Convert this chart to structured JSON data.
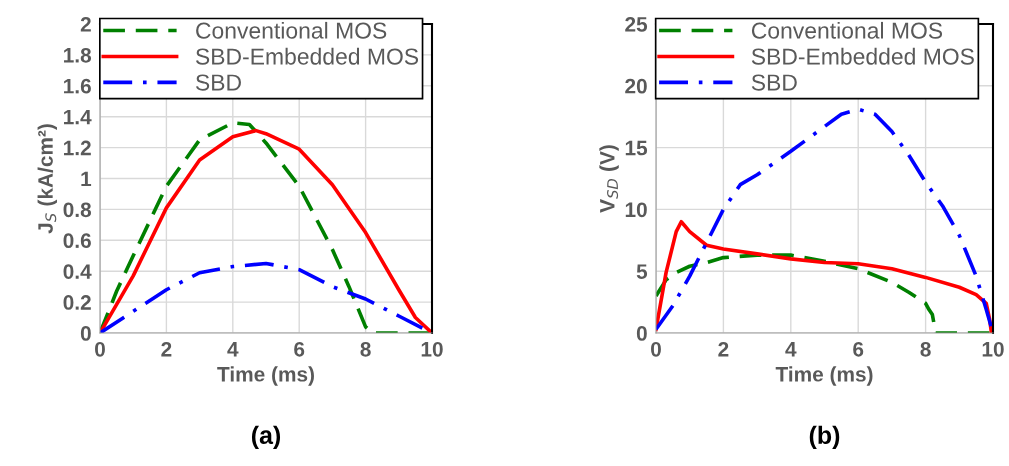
{
  "chart_data": [
    {
      "type": "line",
      "title": "(a)",
      "xlabel": "Time (ms)",
      "ylabel": "J$_{S}$ (kA/cm²)",
      "xlim": [
        0,
        10
      ],
      "xticks": [
        0,
        2,
        4,
        6,
        8,
        10
      ],
      "ylim": [
        0,
        2
      ],
      "yticks": [
        0,
        {
          "value": 0.2,
          "label": "0.2"
        },
        {
          "value": 0.4,
          "label": "0.4"
        },
        {
          "value": 0.6,
          "label": "0.6"
        },
        {
          "value": 0.8,
          "label": "0.8"
        },
        1,
        {
          "value": 1.2,
          "label": "1.2"
        },
        {
          "value": 1.4,
          "label": "1.4"
        },
        {
          "value": 1.6,
          "label": "1.6"
        },
        {
          "value": 1.8,
          "label": "1.8"
        },
        2
      ],
      "grid": true,
      "legend": "top left",
      "marker": "none",
      "series": [
        {
          "name": "Conventional MOS",
          "color": "#008000",
          "line_style": "dashed",
          "x": [
            0,
            0.5,
            1,
            2,
            3,
            4,
            4.5,
            5,
            6,
            7,
            7.5,
            8,
            8.2,
            9.3,
            10
          ],
          "values": [
            0,
            0.27,
            0.5,
            0.95,
            1.25,
            1.36,
            1.35,
            1.23,
            0.95,
            0.54,
            0.3,
            0.04,
            0,
            0,
            0
          ]
        },
        {
          "name": "SBD-Embedded MOS",
          "color": "#ff0000",
          "line_style": "solid",
          "x": [
            0,
            1,
            2,
            3,
            4,
            4.7,
            5,
            6,
            7,
            8,
            9,
            9.5,
            10
          ],
          "values": [
            0,
            0.37,
            0.81,
            1.12,
            1.27,
            1.31,
            1.29,
            1.19,
            0.96,
            0.65,
            0.28,
            0.1,
            0
          ]
        },
        {
          "name": "SBD",
          "color": "#0000ff",
          "line_style": "dashdot",
          "x": [
            0,
            1,
            2,
            3,
            4,
            5,
            6,
            7,
            8,
            9,
            10
          ],
          "values": [
            0,
            0.14,
            0.28,
            0.39,
            0.43,
            0.45,
            0.41,
            0.3,
            0.22,
            0.11,
            0
          ]
        }
      ]
    },
    {
      "type": "line",
      "title": "(b)",
      "xlabel": "Time (ms)",
      "ylabel": "V$_{SD}$ (V)",
      "xlim": [
        0,
        10
      ],
      "xticks": [
        0,
        2,
        4,
        6,
        8,
        10
      ],
      "ylim": [
        0,
        25
      ],
      "yticks": [
        0,
        5,
        10,
        15,
        20,
        25
      ],
      "grid": true,
      "legend": "top left",
      "marker": "none",
      "series": [
        {
          "name": "Conventional MOS",
          "color": "#008000",
          "line_style": "dashed",
          "x": [
            0,
            0.3,
            0.6,
            1,
            1.5,
            2,
            3,
            4,
            5,
            6,
            7,
            7.5,
            8,
            8.1,
            8.2,
            8.3,
            9.3,
            10
          ],
          "values": [
            3.0,
            4.3,
            4.9,
            5.4,
            5.7,
            6.1,
            6.3,
            6.3,
            5.8,
            5.2,
            4.1,
            3.3,
            2.4,
            1.9,
            1.5,
            0,
            0,
            0
          ]
        },
        {
          "name": "SBD-Embedded MOS",
          "color": "#ff0000",
          "line_style": "solid",
          "x": [
            0,
            0.3,
            0.6,
            0.75,
            1,
            1.5,
            2,
            3,
            4,
            5,
            6,
            7,
            8,
            9,
            9.5,
            9.8,
            9.9,
            9.95,
            10
          ],
          "values": [
            0.3,
            4.9,
            8.2,
            9.0,
            8.2,
            7.1,
            6.8,
            6.4,
            6.0,
            5.7,
            5.6,
            5.2,
            4.5,
            3.7,
            3.1,
            2.4,
            1.1,
            0.1,
            0
          ]
        },
        {
          "name": "SBD",
          "color": "#0000ff",
          "line_style": "dashdot",
          "x": [
            0,
            0.5,
            1,
            1.5,
            2,
            2.5,
            3,
            4,
            5,
            5.5,
            6,
            6.5,
            7,
            7.5,
            8,
            8.5,
            9,
            9.5,
            9.8,
            10
          ],
          "values": [
            0.3,
            2.2,
            4.6,
            7.3,
            10,
            12,
            12.8,
            14.7,
            16.7,
            17.7,
            18.1,
            17.7,
            16.3,
            14.4,
            12.2,
            10.3,
            7.9,
            4.6,
            1.9,
            0
          ]
        }
      ]
    }
  ]
}
